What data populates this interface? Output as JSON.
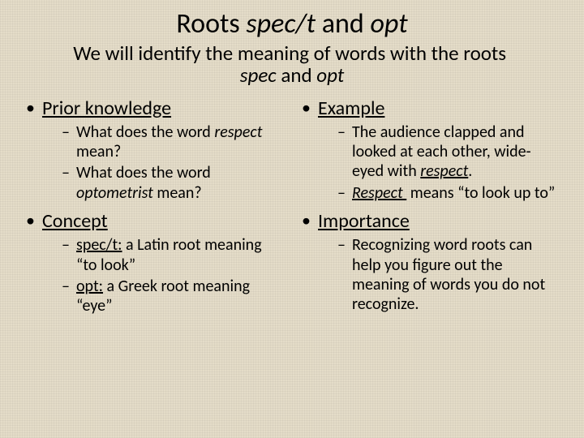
{
  "colors": {
    "background": "#e4dcc8",
    "text": "#000000"
  },
  "typography": {
    "title_fontsize_pt": 26,
    "subtitle_fontsize_pt": 19,
    "bullet_lvl1_fontsize_pt": 18,
    "bullet_lvl2_fontsize_pt": 15,
    "font_family": "Calibri"
  },
  "title": {
    "pre": "Roots ",
    "roots": "spec/t",
    "mid": " and ",
    "root2": "opt"
  },
  "subtitle": {
    "line1_pre": "We will identify the meaning of words with the roots ",
    "line2_root1": "spec",
    "line2_mid": " and ",
    "line2_root2": "opt"
  },
  "left": {
    "h1": "Prior knowledge",
    "pk1_a": "What does the word ",
    "pk1_b": "respect",
    "pk1_c": " mean?",
    "pk2_a": "What does the word ",
    "pk2_b": "optometrist",
    "pk2_c": " mean?",
    "h2": "Concept",
    "c1_a": "spec/t:",
    "c1_b": " a Latin root meaning “to look”",
    "c2_a": "opt:",
    "c2_b": " a Greek root meaning “eye”"
  },
  "right": {
    "h1": "Example",
    "e1_a": "The audience clapped and looked at each other, wide-eyed with ",
    "e1_b": "respect",
    "e1_c": ".",
    "e2_a": "Respect ",
    "e2_b": " means “to look up to”",
    "h2": "Importance",
    "i1": "Recognizing word roots can help you figure out the meaning of words you do not recognize."
  }
}
